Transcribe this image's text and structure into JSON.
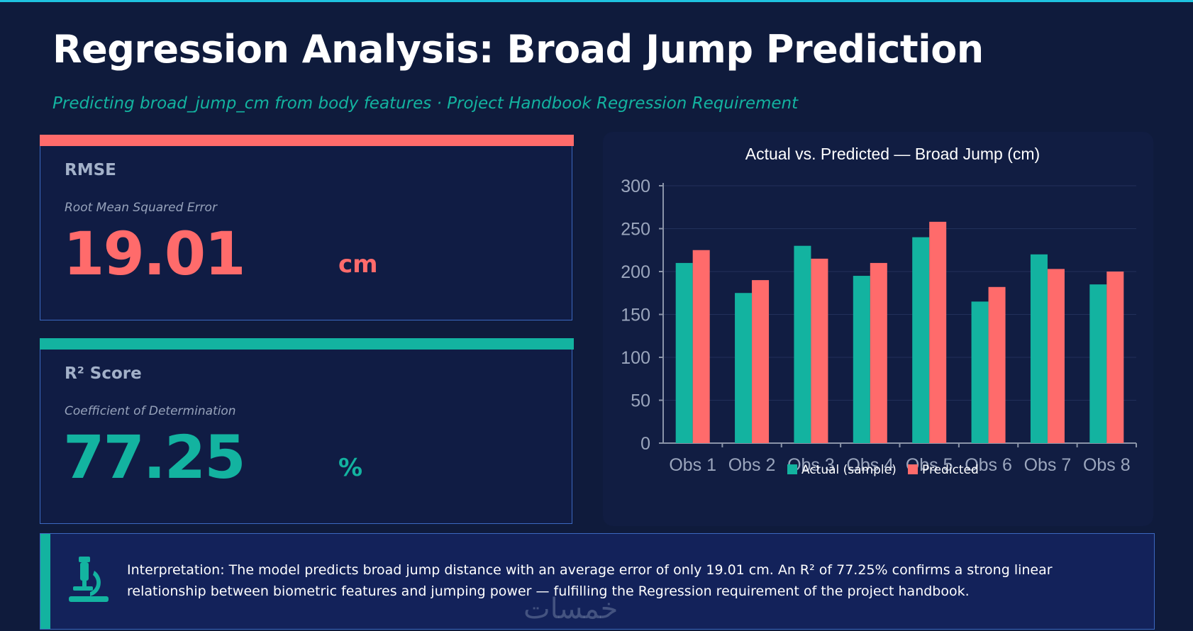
{
  "header": {
    "title": "Regression Analysis: Broad Jump Prediction",
    "subtitle": "Predicting broad_jump_cm from body features · Project Handbook Regression Requirement"
  },
  "metrics": {
    "rmse": {
      "label": "RMSE",
      "description": "Root Mean Squared Error",
      "value": "19.01",
      "unit": "cm",
      "color": "#ff6b6b"
    },
    "r2": {
      "label": "R² Score",
      "description": "Coefficient of Determination",
      "value": "77.25",
      "unit": "%",
      "color": "#13b3a0"
    }
  },
  "chart_data": {
    "type": "bar",
    "title": "Actual vs. Predicted — Broad Jump (cm)",
    "categories": [
      "Obs 1",
      "Obs 2",
      "Obs 3",
      "Obs 4",
      "Obs 5",
      "Obs 6",
      "Obs 7",
      "Obs 8"
    ],
    "series": [
      {
        "name": "Actual (sample)",
        "color": "#13b3a0",
        "values": [
          210,
          175,
          230,
          195,
          240,
          165,
          220,
          185
        ]
      },
      {
        "name": "Predicted",
        "color": "#ff6b6b",
        "values": [
          225,
          190,
          215,
          210,
          258,
          182,
          203,
          200
        ]
      }
    ],
    "ylim": [
      0,
      300
    ],
    "yticks": [
      0,
      50,
      100,
      150,
      200,
      250,
      300
    ],
    "xlabel": "",
    "ylabel": "",
    "legend": "bottom-center",
    "grid": true
  },
  "interpretation": {
    "icon": "microscope-icon",
    "text": "Interpretation: The model predicts broad jump distance with an average error of only 19.01 cm. An R² of 77.25% confirms a strong linear relationship between biometric features and jumping power — fulfilling the Regression requirement of the project handbook."
  },
  "watermark": "خمسات"
}
